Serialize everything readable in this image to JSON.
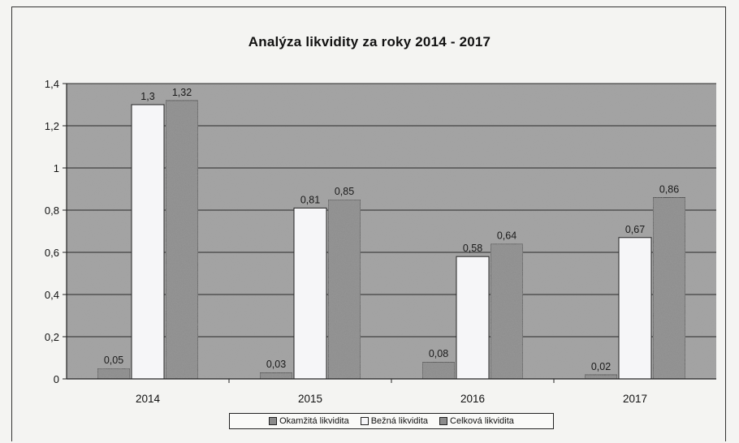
{
  "chart_data": {
    "type": "bar",
    "title": "Analýza likvidity za roky 2014 - 2017",
    "xlabel": "",
    "ylabel": "",
    "categories": [
      "2014",
      "2015",
      "2016",
      "2017"
    ],
    "ylim": [
      0,
      1.4
    ],
    "yticks": [
      0,
      0.2,
      0.4,
      0.6,
      0.8,
      1,
      1.2,
      1.4
    ],
    "ytick_labels": [
      "0",
      "0,2",
      "0,4",
      "0,6",
      "0,8",
      "1",
      "1,2",
      "1,4"
    ],
    "grid": true,
    "legend_position": "bottom",
    "series": [
      {
        "name": "Okamžitá likvidita",
        "values": [
          0.05,
          0.03,
          0.08,
          0.02
        ],
        "labels": [
          "0,05",
          "0,03",
          "0,08",
          "0,02"
        ],
        "color": "#8a8a8a"
      },
      {
        "name": "Bežná likvidita",
        "values": [
          1.3,
          0.81,
          0.58,
          0.67
        ],
        "labels": [
          "1,3",
          "0,81",
          "0,58",
          "0,67"
        ],
        "color": "#f6f6f8"
      },
      {
        "name": "Celková likvidita",
        "values": [
          1.32,
          0.85,
          0.64,
          0.86
        ],
        "labels": [
          "1,32",
          "0,85",
          "0,64",
          "0,86"
        ],
        "color": "#8c8c8c"
      }
    ],
    "plot_background": "#a4a4a4"
  }
}
